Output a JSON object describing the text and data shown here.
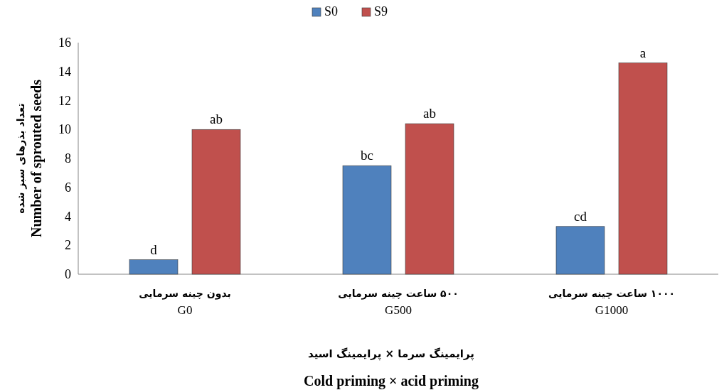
{
  "chart_data": {
    "type": "bar",
    "categories": [
      "G0",
      "G500",
      "G1000"
    ],
    "series": [
      {
        "name": "S0",
        "color": "#4f81bd",
        "values": [
          1.0,
          7.5,
          3.3
        ],
        "value_labels": [
          "d",
          "bc",
          "cd"
        ]
      },
      {
        "name": "S9",
        "color": "#c0504d",
        "values": [
          10.0,
          10.4,
          14.6
        ],
        "value_labels": [
          "ab",
          "ab",
          "a"
        ]
      }
    ],
    "ylabel": "Number of sprouted seeds",
    "xlabel": "Cold priming × acid priming",
    "annotations": [
      "تعداد بذرهای سبز شده",
      "پرایمینگ سرما × پرایمینگ اسید",
      "بدون چینه سرمایی",
      "۵۰۰ ساعت چینه سرمایی",
      "۱۰۰۰ ساعت چینه سرمایی"
    ],
    "ylim": [
      0,
      16
    ],
    "yticks": [
      0,
      2,
      4,
      6,
      8,
      10,
      12,
      14,
      16
    ],
    "legend": "top",
    "grid": false
  }
}
